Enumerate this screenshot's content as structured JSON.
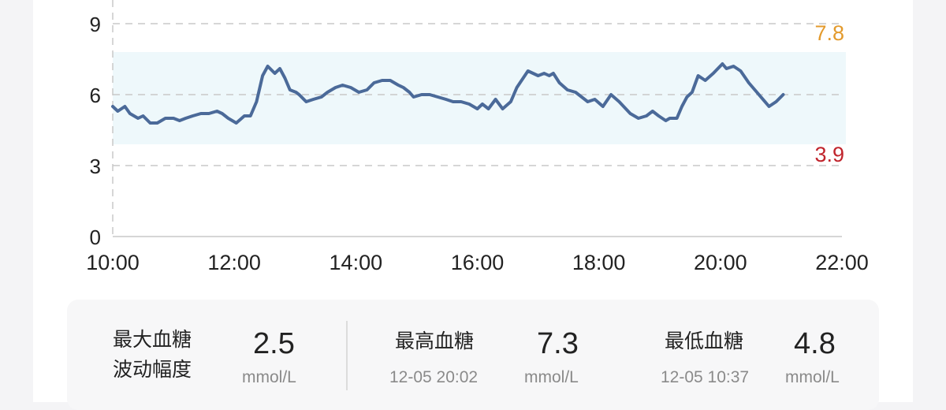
{
  "chart_data": {
    "type": "line",
    "xlabel": "",
    "ylabel": "",
    "x_ticks": [
      "10:00",
      "12:00",
      "14:00",
      "16:00",
      "18:00",
      "20:00",
      "22:00"
    ],
    "y_ticks": [
      "0",
      "3",
      "6",
      "9"
    ],
    "xlim": [
      "10:00",
      "22:00"
    ],
    "ylim": [
      0,
      9
    ],
    "grid": "dashed",
    "target_range": {
      "low": 3.9,
      "high": 7.8,
      "low_label": "3.9",
      "high_label": "7.8",
      "band_color": "#eef8fb",
      "low_color": "#c0242c",
      "high_color": "#e39a2c"
    },
    "line_color": "#4b6a99",
    "series": [
      {
        "x": [
          "10:00",
          "10:05",
          "10:12",
          "10:17",
          "10:25",
          "10:30",
          "10:37",
          "10:44",
          "10:52",
          "11:00",
          "11:06",
          "11:12",
          "11:19",
          "11:27",
          "11:35",
          "11:43",
          "11:48",
          "11:54",
          "12:02",
          "12:10",
          "12:16",
          "12:22",
          "12:28",
          "12:33",
          "12:40",
          "12:45",
          "12:50",
          "12:55",
          "13:01",
          "13:04",
          "13:11",
          "13:18",
          "13:26",
          "13:32",
          "13:40",
          "13:47",
          "13:55",
          "14:03",
          "14:11",
          "14:18",
          "14:26",
          "14:34",
          "14:42",
          "14:47",
          "14:53",
          "14:57",
          "15:05",
          "15:13",
          "15:21",
          "15:29",
          "15:36",
          "15:44",
          "15:52",
          "16:00",
          "16:05",
          "16:11",
          "16:18",
          "16:25",
          "16:33",
          "16:39",
          "16:50",
          "17:00",
          "17:06",
          "17:11",
          "17:15",
          "17:21",
          "17:29",
          "17:37",
          "17:49",
          "17:56",
          "18:04",
          "18:12",
          "18:20",
          "18:31",
          "18:39",
          "18:47",
          "18:53",
          "18:59",
          "19:06",
          "19:10",
          "19:17",
          "19:22",
          "19:27",
          "19:32",
          "19:38",
          "19:45",
          "19:53",
          "20:02",
          "20:06",
          "20:13",
          "20:20",
          "20:28",
          "20:36",
          "20:48",
          "20:55",
          "21:02"
        ],
        "y": [
          5.5,
          5.3,
          5.5,
          5.2,
          5.0,
          5.1,
          4.8,
          4.8,
          5.0,
          5.0,
          4.9,
          5.0,
          5.1,
          5.2,
          5.2,
          5.3,
          5.2,
          5.0,
          4.8,
          5.1,
          5.1,
          5.7,
          6.8,
          7.2,
          6.9,
          7.1,
          6.7,
          6.2,
          6.1,
          6.0,
          5.7,
          5.8,
          5.9,
          6.1,
          6.3,
          6.4,
          6.3,
          6.1,
          6.2,
          6.5,
          6.6,
          6.6,
          6.4,
          6.3,
          6.1,
          5.9,
          6.0,
          6.0,
          5.9,
          5.8,
          5.7,
          5.7,
          5.6,
          5.4,
          5.6,
          5.4,
          5.8,
          5.4,
          5.7,
          6.3,
          7.0,
          6.8,
          6.9,
          6.8,
          6.9,
          6.5,
          6.2,
          6.1,
          5.7,
          5.8,
          5.5,
          6.0,
          5.7,
          5.2,
          5.0,
          5.1,
          5.3,
          5.1,
          4.9,
          5.0,
          5.0,
          5.5,
          5.9,
          6.1,
          6.8,
          6.6,
          6.9,
          7.3,
          7.1,
          7.2,
          7.0,
          6.5,
          6.1,
          5.5,
          5.7,
          6.0
        ]
      }
    ]
  },
  "stats": {
    "fluctuation": {
      "label_line1": "最大血糖",
      "label_line2": "波动幅度",
      "value": "2.5",
      "unit": "mmol/L"
    },
    "highest": {
      "label": "最高血糖",
      "time": "12-05 20:02",
      "value": "7.3",
      "unit": "mmol/L"
    },
    "lowest": {
      "label": "最低血糖",
      "time": "12-05 10:37",
      "value": "4.8",
      "unit": "mmol/L"
    }
  }
}
